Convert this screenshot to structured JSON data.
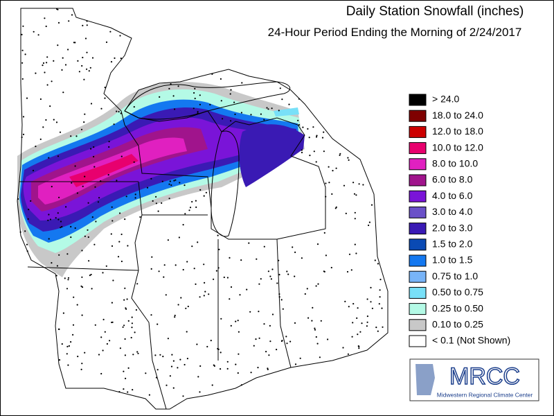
{
  "header": {
    "title": "Daily Station Snowfall (inches)",
    "subtitle": "24-Hour Period Ending the Morning of 2/24/2017"
  },
  "legend": {
    "items": [
      {
        "label": "> 24.0",
        "color": "#000000"
      },
      {
        "label": "18.0 to 24.0",
        "color": "#7f0000"
      },
      {
        "label": "12.0 to 18.0",
        "color": "#cc0000"
      },
      {
        "label": "10.0 to 12.0",
        "color": "#e8006e"
      },
      {
        "label": "8.0 to 10.0",
        "color": "#e020c0"
      },
      {
        "label": "6.0 to 8.0",
        "color": "#a0148c"
      },
      {
        "label": "4.0 to 6.0",
        "color": "#7a14d8"
      },
      {
        "label": "3.0 to 4.0",
        "color": "#6a50c8"
      },
      {
        "label": "2.0 to 3.0",
        "color": "#3a1ab4"
      },
      {
        "label": "1.5 to 2.0",
        "color": "#0a4ab4"
      },
      {
        "label": "1.0 to 1.5",
        "color": "#1478f0"
      },
      {
        "label": "0.75 to 1.0",
        "color": "#78b4f8"
      },
      {
        "label": "0.50 to 0.75",
        "color": "#78e0f8"
      },
      {
        "label": "0.25 to 0.50",
        "color": "#b4fae6"
      },
      {
        "label": "0.10 to 0.25",
        "color": "#c8c8c8"
      },
      {
        "label": "< 0.1 (Not Shown)",
        "color": "#ffffff"
      }
    ]
  },
  "logo": {
    "name": "MRCC",
    "full_name": "Midwestern Regional Climate Center"
  }
}
